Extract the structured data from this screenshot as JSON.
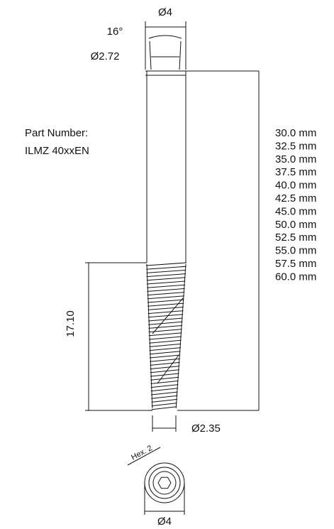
{
  "dimensions": {
    "head_diameter": "Ø4",
    "angle": "16°",
    "inner_diameter": "Ø2.72",
    "thread_length": "17.10",
    "tip_diameter": "Ø2.35",
    "hex": "Hex. 2",
    "bottom_diameter": "Ø4"
  },
  "part": {
    "label": "Part Number:",
    "number": "ILMZ 40xxEN"
  },
  "lengths": [
    "30.0 mm",
    "32.5 mm",
    "35.0 mm",
    "37.5 mm",
    "40.0 mm",
    "42.5 mm",
    "45.0 mm",
    "50.0 mm",
    "52.5 mm",
    "55.0 mm",
    "57.5 mm",
    "60.0 mm"
  ]
}
